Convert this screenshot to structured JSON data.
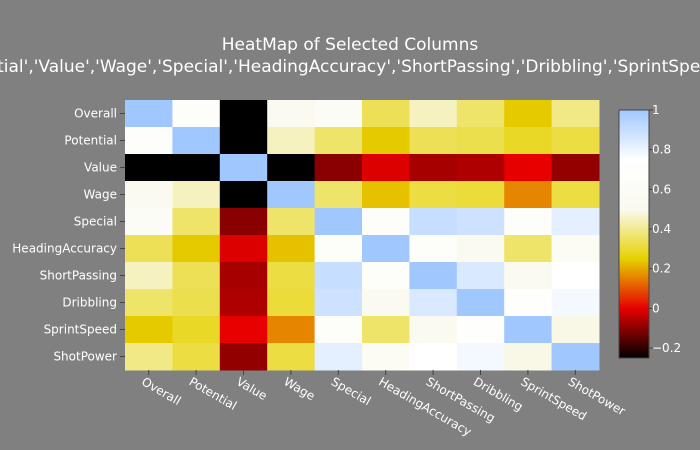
{
  "chart_data": {
    "type": "heatmap",
    "title_line1": "HeatMap of Selected Columns",
    "title_line2": "['Overall','Potential','Value','Wage','Special','HeadingAccuracy','ShortPassing','Dribbling','SprintSpeed','ShotPower']",
    "x_categories": [
      "Overall",
      "Potential",
      "Value",
      "Wage",
      "Special",
      "HeadingAccuracy",
      "ShortPassing",
      "Dribbling",
      "SprintSpeed",
      "ShotPower"
    ],
    "y_categories": [
      "Overall",
      "Potential",
      "Value",
      "Wage",
      "Special",
      "HeadingAccuracy",
      "ShortPassing",
      "Dribbling",
      "SprintSpeed",
      "ShotPower"
    ],
    "z": [
      [
        1.0,
        0.66,
        -0.25,
        0.52,
        0.6,
        0.34,
        0.45,
        0.36,
        0.24,
        0.39
      ],
      [
        0.66,
        1.0,
        -0.25,
        0.45,
        0.36,
        0.24,
        0.34,
        0.33,
        0.29,
        0.32
      ],
      [
        -0.25,
        -0.25,
        1.0,
        -0.3,
        -0.1,
        -0.01,
        -0.07,
        -0.06,
        0.0,
        -0.09
      ],
      [
        0.52,
        0.45,
        -0.3,
        1.0,
        0.36,
        0.23,
        0.32,
        0.31,
        0.16,
        0.32
      ],
      [
        0.6,
        0.36,
        -0.1,
        0.36,
        1.0,
        0.65,
        0.9,
        0.88,
        0.67,
        0.82
      ],
      [
        0.34,
        0.24,
        -0.01,
        0.23,
        0.65,
        1.0,
        0.66,
        0.5,
        0.36,
        0.58
      ],
      [
        0.45,
        0.34,
        -0.07,
        0.32,
        0.9,
        0.66,
        1.0,
        0.85,
        0.5,
        0.75
      ],
      [
        0.36,
        0.33,
        -0.06,
        0.31,
        0.88,
        0.5,
        0.85,
        1.0,
        0.72,
        0.78
      ],
      [
        0.24,
        0.29,
        0.0,
        0.16,
        0.67,
        0.36,
        0.5,
        0.72,
        1.0,
        0.49
      ],
      [
        0.39,
        0.32,
        -0.09,
        0.32,
        0.82,
        0.58,
        0.75,
        0.78,
        0.49,
        1.0
      ]
    ],
    "zlim": [
      -0.25,
      1
    ],
    "colorscale": [
      [
        0.0,
        "#000000"
      ],
      [
        0.2,
        "#e60000"
      ],
      [
        0.4,
        "#e6d200"
      ],
      [
        0.6,
        "#fafaf0"
      ],
      [
        0.8,
        "#ffffff"
      ],
      [
        1.0,
        "#a0c8ff"
      ]
    ],
    "colorbar_ticks": [
      -0.2,
      0,
      0.2,
      0.4,
      0.6,
      0.8,
      1
    ],
    "colorbar_tick_labels": [
      "−0.2",
      "0",
      "0.2",
      "0.4",
      "0.6",
      "0.8",
      "1"
    ],
    "grid": false,
    "colors": {
      "background": "#808080",
      "text": "#ffffff"
    }
  }
}
